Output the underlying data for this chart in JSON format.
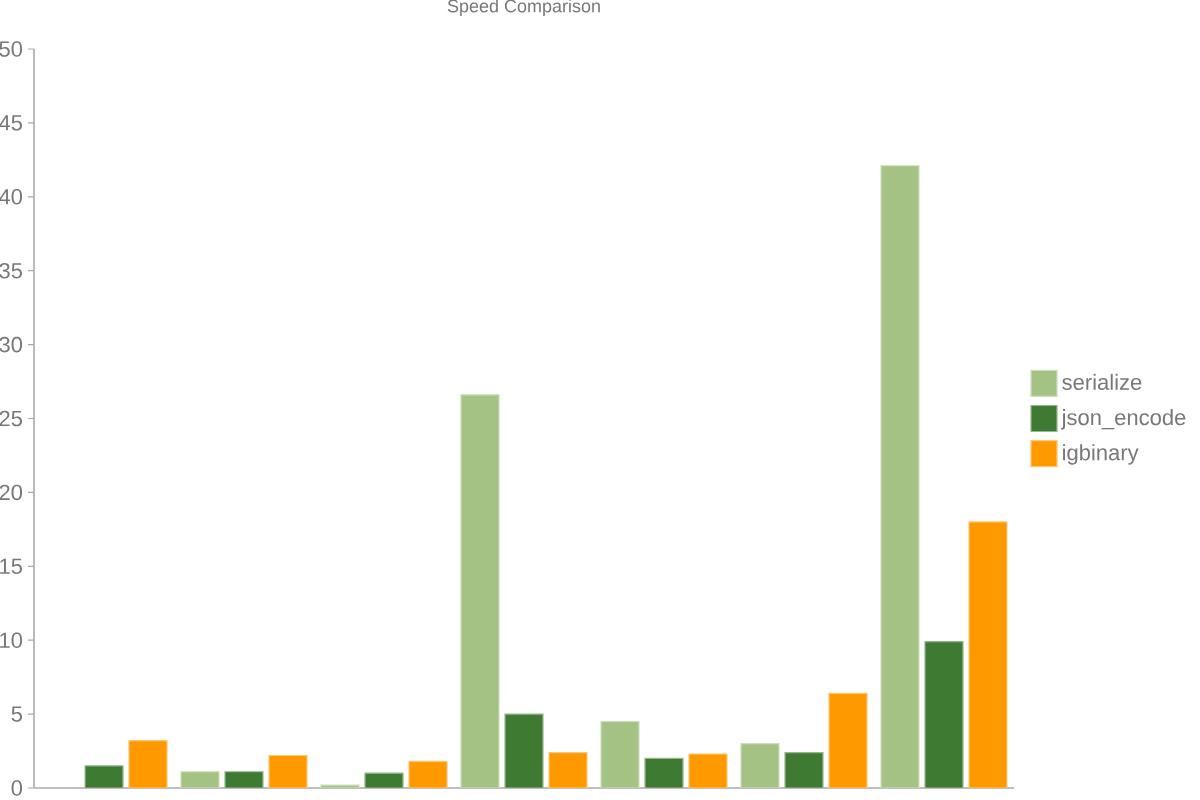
{
  "chart_data": {
    "type": "bar",
    "title": "Speed Comparison",
    "categories": [
      null,
      null,
      null,
      null,
      null,
      null,
      null
    ],
    "series": [
      {
        "name": "serialize",
        "color": "#a4c283",
        "values": [
          null,
          1.1,
          0.2,
          26.6,
          4.5,
          3.0,
          42.1
        ]
      },
      {
        "name": "json_encode",
        "color": "#3e7a32",
        "values": [
          1.5,
          1.1,
          1.0,
          5.0,
          2.0,
          2.4,
          9.9
        ]
      },
      {
        "name": "igbinary",
        "color": "#ff9900",
        "values": [
          3.2,
          2.2,
          1.8,
          2.4,
          2.3,
          6.4,
          18.0
        ]
      }
    ],
    "ylim": [
      0,
      50
    ],
    "yticks": [
      0,
      5,
      10,
      15,
      20,
      25,
      30,
      35,
      40,
      45,
      50
    ],
    "legend": "right",
    "tick_labels": "y"
  }
}
